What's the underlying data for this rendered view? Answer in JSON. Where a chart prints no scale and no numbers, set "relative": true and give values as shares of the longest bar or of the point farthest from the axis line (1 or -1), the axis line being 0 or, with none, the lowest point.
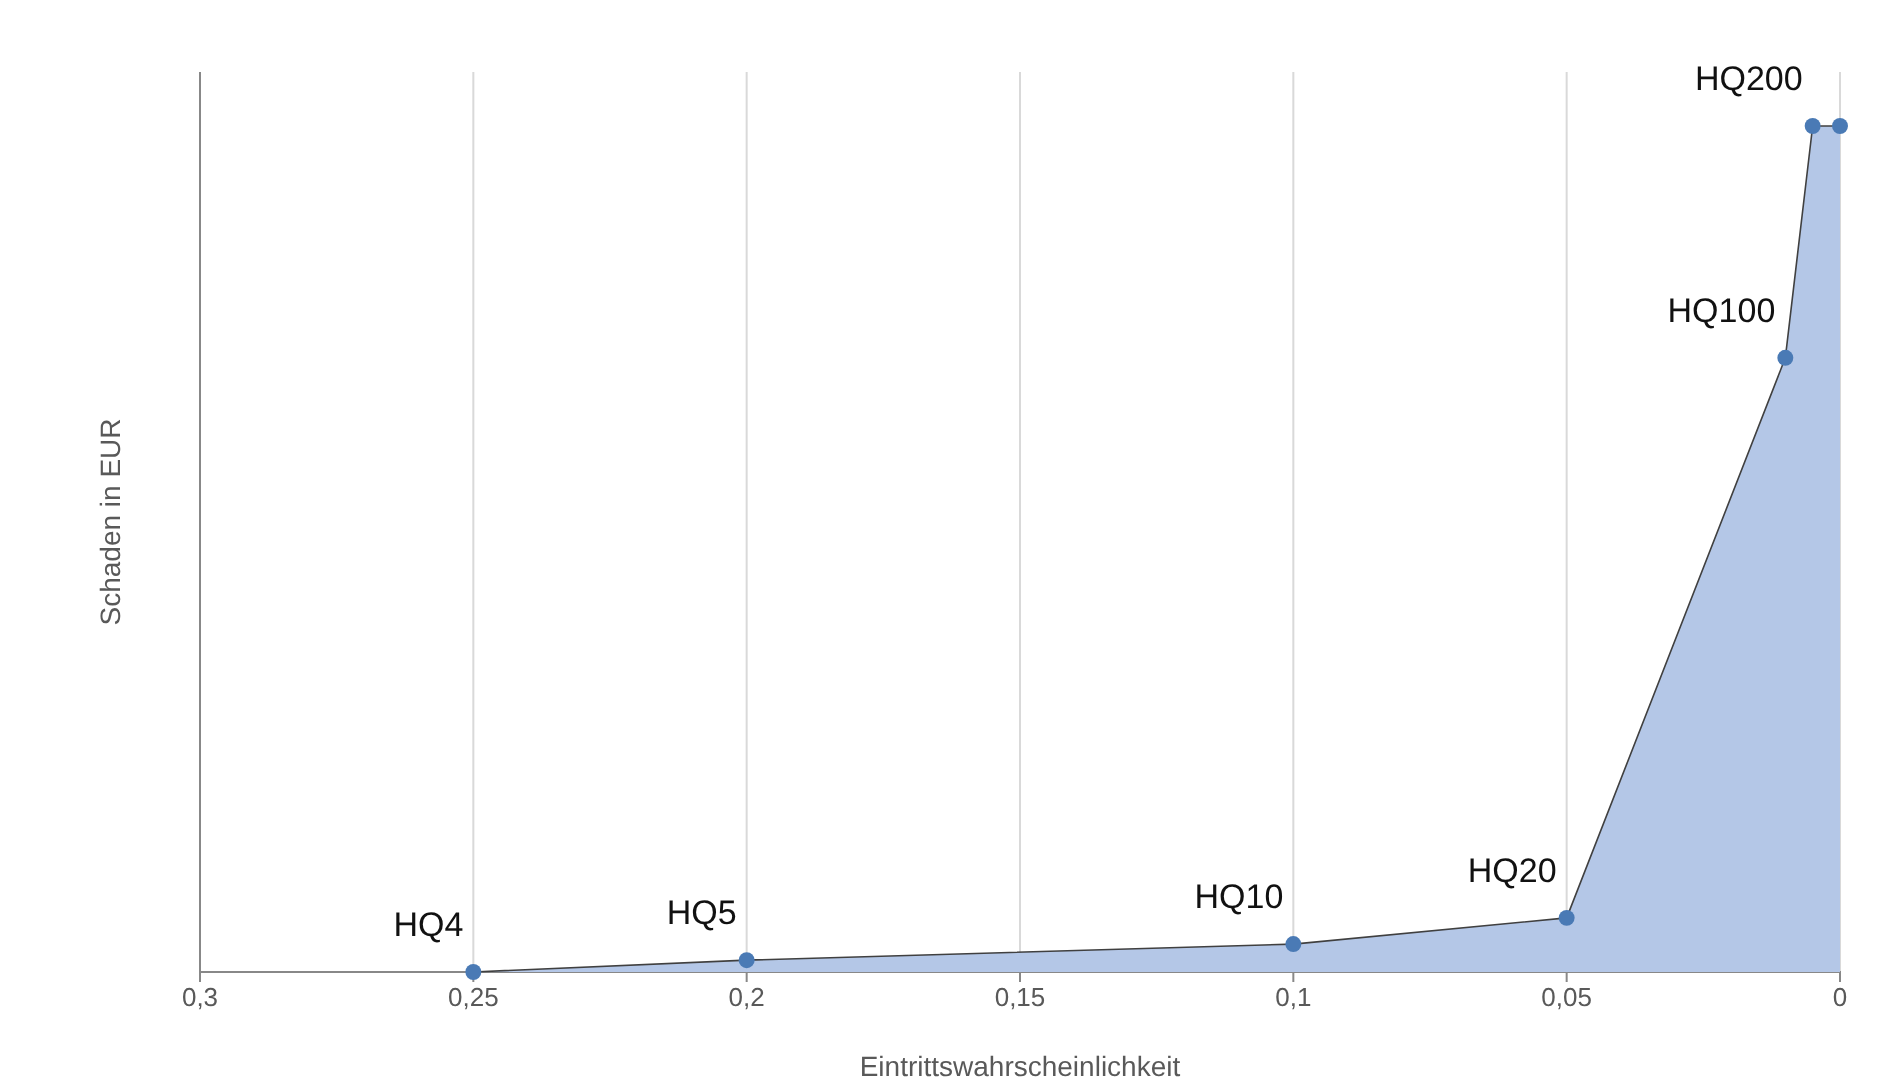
{
  "chart_data": {
    "type": "area",
    "xlabel": "Eintrittswahrscheinlichkeit",
    "ylabel": "Schaden in EUR",
    "relative": true,
    "x": [
      0.25,
      0.2,
      0.1,
      0.05,
      0.01,
      0.005,
      0
    ],
    "series": [
      {
        "color": "#b4c7e7",
        "values": [
          0,
          0.014,
          0.033,
          0.064,
          0.726,
          1,
          1
        ]
      }
    ],
    "xlim": [
      0.3,
      0
    ],
    "xticks": [
      {
        "value": 0.3,
        "label": "0,3"
      },
      {
        "value": 0.25,
        "label": "0,25"
      },
      {
        "value": 0.2,
        "label": "0,2"
      },
      {
        "value": 0.15,
        "label": "0,15"
      },
      {
        "value": 0.1,
        "label": "0,1"
      },
      {
        "value": 0.05,
        "label": "0,05"
      },
      {
        "value": 0,
        "label": "0"
      }
    ],
    "grid": "x",
    "marker": "circle",
    "annotations": [
      {
        "text": "HQ4",
        "x": 0.25,
        "y": 0
      },
      {
        "text": "HQ5",
        "x": 0.2,
        "y": 0.014
      },
      {
        "text": "HQ10",
        "x": 0.1,
        "y": 0.033
      },
      {
        "text": "HQ20",
        "x": 0.05,
        "y": 0.064
      },
      {
        "text": "HQ100",
        "x": 0.01,
        "y": 0.726
      },
      {
        "text": "HQ200",
        "x": 0.005,
        "y": 1
      }
    ]
  }
}
